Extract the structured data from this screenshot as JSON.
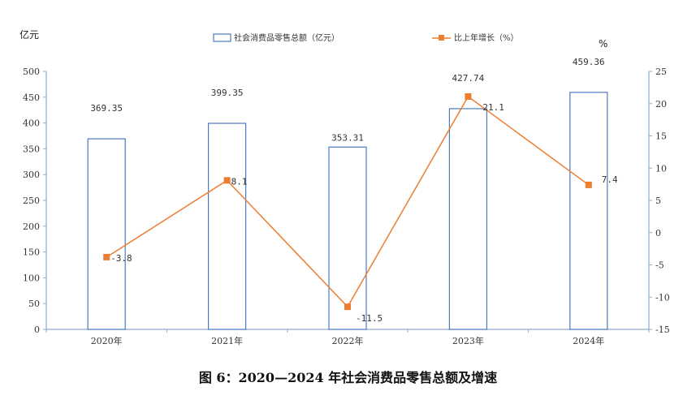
{
  "caption": "图 6：2020—2024 年社会消费品零售总额及增速",
  "chart_data": {
    "type": "bar",
    "categories": [
      "2020年",
      "2021年",
      "2022年",
      "2023年",
      "2024年"
    ],
    "series": [
      {
        "name": "社会消费品零售总额（亿元）",
        "type": "bar",
        "axis": "left",
        "values": [
          369.35,
          399.35,
          353.31,
          427.74,
          459.36
        ],
        "labels": [
          "369.35",
          "399.35",
          "353.31",
          "427.74",
          "459.36"
        ]
      },
      {
        "name": "比上年增长（%）",
        "type": "line",
        "axis": "right",
        "values": [
          -3.8,
          8.1,
          -11.5,
          21.1,
          7.4
        ],
        "labels": [
          "-3.8",
          "8.1",
          "-11.5",
          "21.1",
          "7.4"
        ]
      }
    ],
    "y_left": {
      "unit": "亿元",
      "ylim": [
        0,
        500
      ],
      "ticks": [
        "0",
        "50",
        "100",
        "150",
        "200",
        "250",
        "300",
        "350",
        "400",
        "450",
        "500"
      ]
    },
    "y_right": {
      "unit": "%",
      "ylim": [
        -15,
        25
      ],
      "ticks": [
        "-15",
        "-10",
        "-5",
        "0",
        "5",
        "10",
        "15",
        "20",
        "25"
      ]
    },
    "grid": false,
    "legend_position": "top",
    "colors": {
      "bar_stroke": "#4a7cc0",
      "line": "#ed7d31",
      "axis": "#8fa9d0"
    }
  }
}
